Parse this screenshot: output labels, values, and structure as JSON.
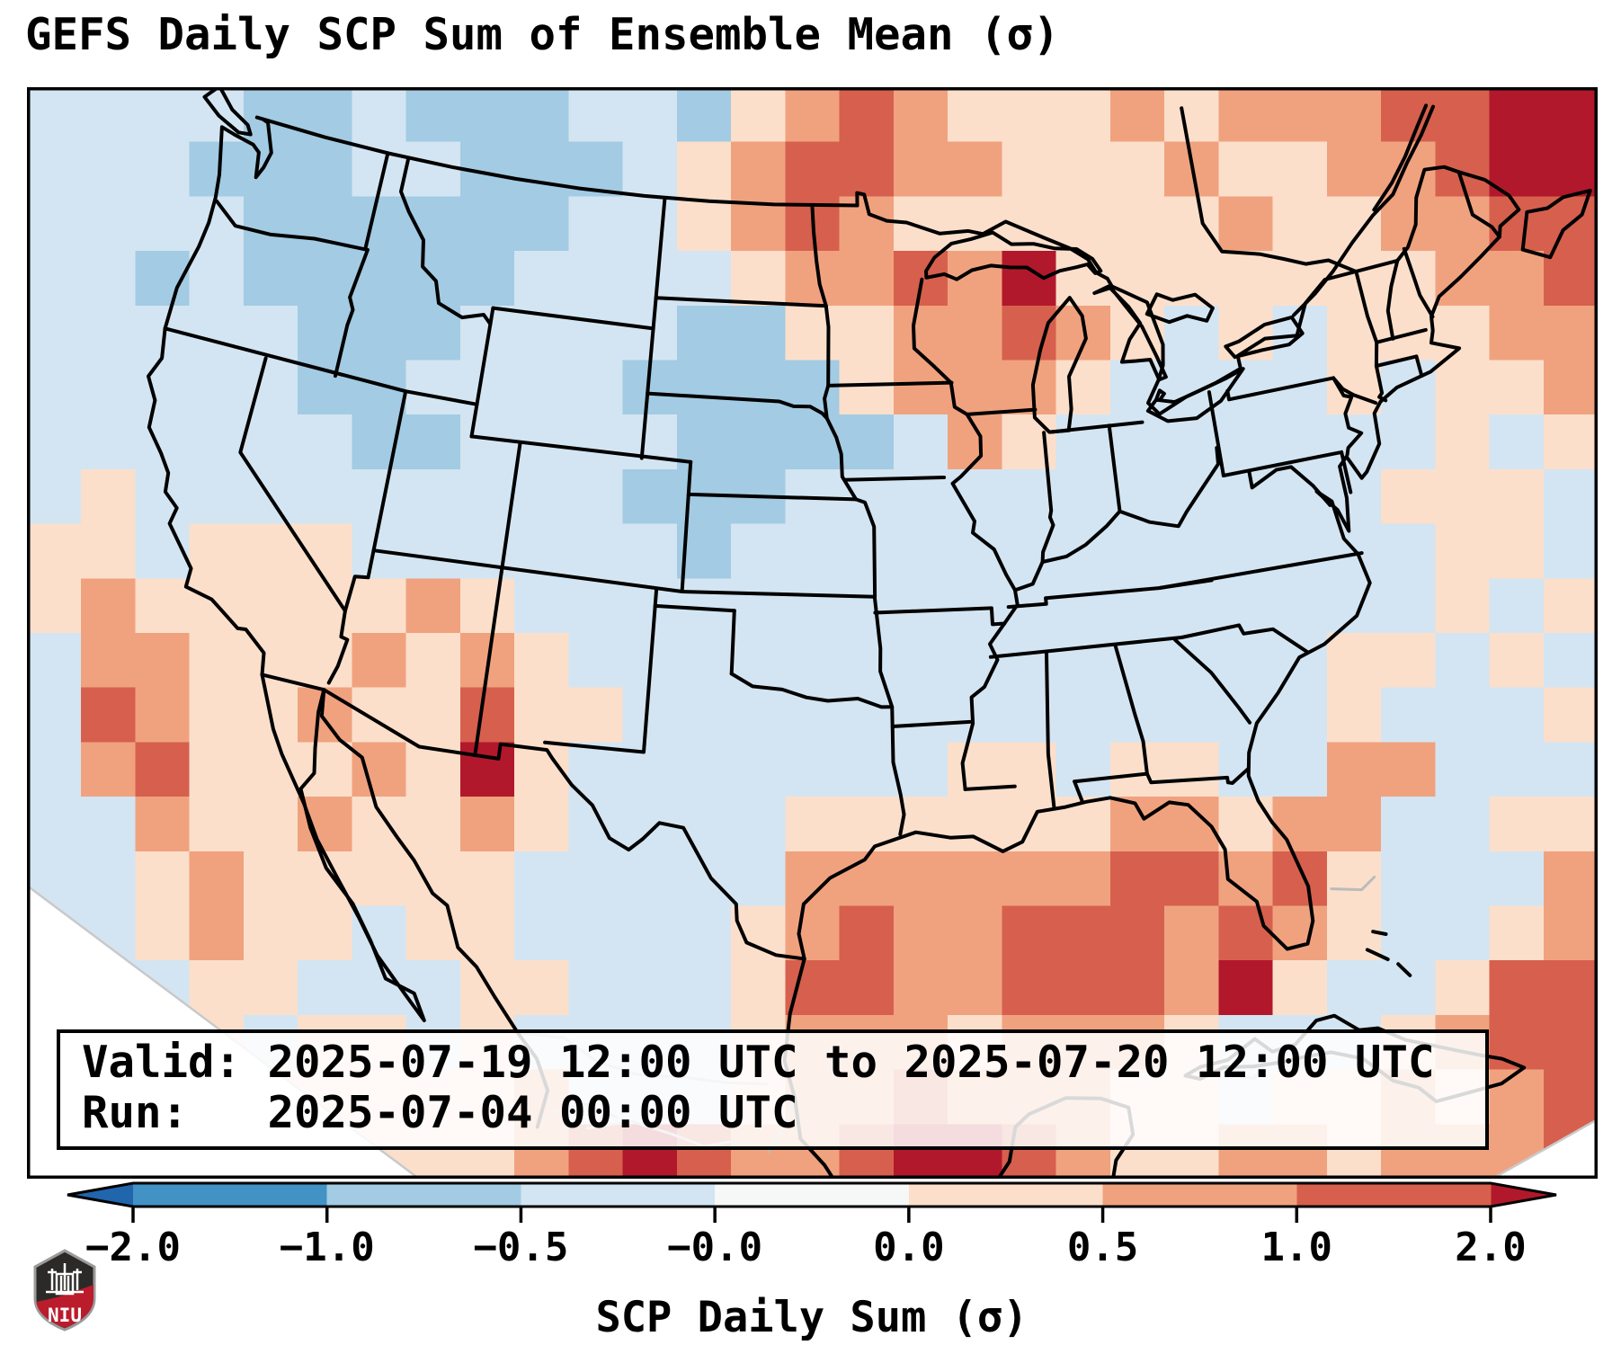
{
  "title": "GEFS Daily SCP Sum of Ensemble Mean (σ)",
  "info_box": {
    "line1": "Valid: 2025-07-19 12:00 UTC to 2025-07-20 12:00 UTC",
    "line2": "Run:   2025-07-04 00:00 UTC"
  },
  "colorbar": {
    "label": "SCP Daily Sum (σ)",
    "ticks": [
      "−2.0",
      "−1.0",
      "−0.5",
      "−0.0",
      "0.0",
      "0.5",
      "1.0",
      "2.0"
    ],
    "boundary_values": [
      -2.0,
      -1.0,
      -0.5,
      -0.0,
      0.0,
      0.5,
      1.0,
      2.0
    ],
    "segment_colors": [
      "#4292c6",
      "#a3cbe3",
      "#d3e5f2",
      "#f6f7f7",
      "#fbdfcb",
      "#f0a27f",
      "#d6604d"
    ],
    "under_color": "#2166ac",
    "over_color": "#b2182b"
  },
  "logo": {
    "text": "NIU",
    "shield_dark": "#2b2a29",
    "shield_red": "#ba1c2c",
    "outline": "#9b9b9b"
  },
  "map": {
    "background": "#d3e5f2",
    "coastline_color": "#000000",
    "foreign_border_color": "#bbbbbb",
    "palette": {
      "1": "#d3e5f2",
      "2": "#a3cbe3",
      "3": "#4292c6",
      "0": "#f6f7f7",
      "a": "#fbdfcb",
      "b": "#f0a27f",
      "c": "#d6604d",
      "d": "#b2182b"
    },
    "grid": {
      "cols": 29,
      "rows": [
        "1111221222112abcbaaababbbccdd",
        "111222112221abccbbaaabaabbcdd",
        "111122222211abcbaaaaaabaabbcc",
        "1121222221111abbcbdaaaaaaabbc",
        "11111222111122aabbcba1a1aaabb",
        "111112211112222abbba1111a1aab",
        "11111122111122221ba1111111a1a",
        "1a11111111122211111111111aaa1",
        "aa1aaa11111121111111111111aa1",
        "abaaaaaba11111111111111111a1a",
        "1bbaaababa11111111111111aa1a1",
        "1cbaabaacaa1111111111111a111a",
        "1bcaaabada1111111aa1aa11bb111",
        "11baabaaba1111aaaaaabbabb11aa",
        "11abaaaaa11111bbbbbbccbca111b",
        "11abaa1aa1111abcbbcccbcba11ab",
        "111aa111aa111accbbcccbda11acc",
        "111a1aa1a1111abbbabbba111abcc",
        "1111aaaaab111abbcbbbaa1aababc",
        "1111aaaaabcdcbbcddcbaabbabbbc"
      ]
    }
  }
}
